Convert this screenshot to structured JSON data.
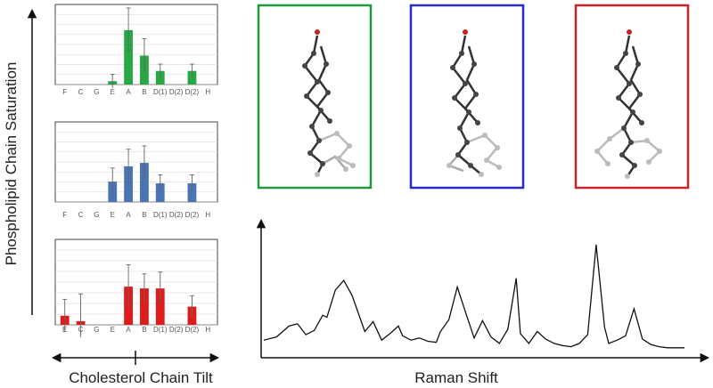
{
  "labels": {
    "y_axis": "Phospholipid Chain Saturation",
    "x_axis": "Cholesterol Chain Tilt",
    "spectrum_x": "Raman Shift"
  },
  "colors": {
    "green": "#27a844",
    "blue": "#4a74b4",
    "red": "#e01b1b",
    "frame_green": "#1f9a3c",
    "frame_blue": "#2b2bc8",
    "frame_red": "#c8242a"
  },
  "chart_data": [
    {
      "type": "bar",
      "categories": [
        "F",
        "C",
        "G",
        "E",
        "A",
        "B",
        "D(1)",
        "D(2)",
        "D(2)",
        "H"
      ],
      "values": [
        0,
        0,
        0,
        2,
        32,
        17,
        8,
        0,
        8,
        0
      ],
      "errors": [
        0,
        0,
        0,
        4,
        13,
        10,
        4,
        0,
        4,
        0
      ],
      "ylim": [
        0,
        45
      ],
      "color": "green"
    },
    {
      "type": "bar",
      "categories": [
        "F",
        "C",
        "G",
        "E",
        "A",
        "B",
        "D(1)",
        "D(2)",
        "D(2)",
        "H"
      ],
      "values": [
        0,
        0,
        0,
        12,
        21,
        23,
        11,
        0,
        11,
        0
      ],
      "errors": [
        0,
        0,
        0,
        8,
        10,
        10,
        5,
        0,
        5,
        0
      ],
      "ylim": [
        0,
        45
      ],
      "color": "blue"
    },
    {
      "type": "bar",
      "categories": [
        "E",
        "C",
        "G",
        "E",
        "A",
        "B",
        "D(1)",
        "D(2)",
        "D(2)",
        "H"
      ],
      "values": [
        5,
        2,
        0,
        0,
        21,
        20,
        20,
        0,
        10,
        0
      ],
      "errors": [
        9,
        15,
        0,
        0,
        12,
        8,
        9,
        0,
        6,
        0
      ],
      "ylim": [
        0,
        45
      ],
      "color": "red"
    },
    {
      "type": "line",
      "x": [
        0,
        3,
        6,
        8,
        10,
        12,
        14,
        15,
        17,
        19,
        21,
        23,
        24,
        26,
        28,
        30,
        32,
        33,
        35,
        37,
        39,
        41,
        42,
        44,
        46,
        48,
        50,
        52,
        54,
        56,
        58,
        60,
        61,
        63,
        65,
        67,
        69,
        71,
        73,
        75,
        77,
        79,
        81,
        82,
        84,
        86,
        88,
        90,
        92,
        94,
        96,
        98,
        100
      ],
      "y": [
        8,
        11,
        21,
        23,
        13,
        17,
        31,
        29,
        54,
        63,
        49,
        27,
        16,
        25,
        8,
        14,
        21,
        12,
        8,
        10,
        7,
        6,
        16,
        27,
        57,
        33,
        10,
        26,
        11,
        5,
        18,
        65,
        14,
        5,
        16,
        9,
        5,
        3,
        2,
        5,
        13,
        96,
        20,
        5,
        8,
        12,
        37,
        9,
        4,
        2,
        1,
        1,
        1
      ],
      "xlabel": "Raman Shift",
      "ylim": [
        0,
        100
      ]
    }
  ]
}
